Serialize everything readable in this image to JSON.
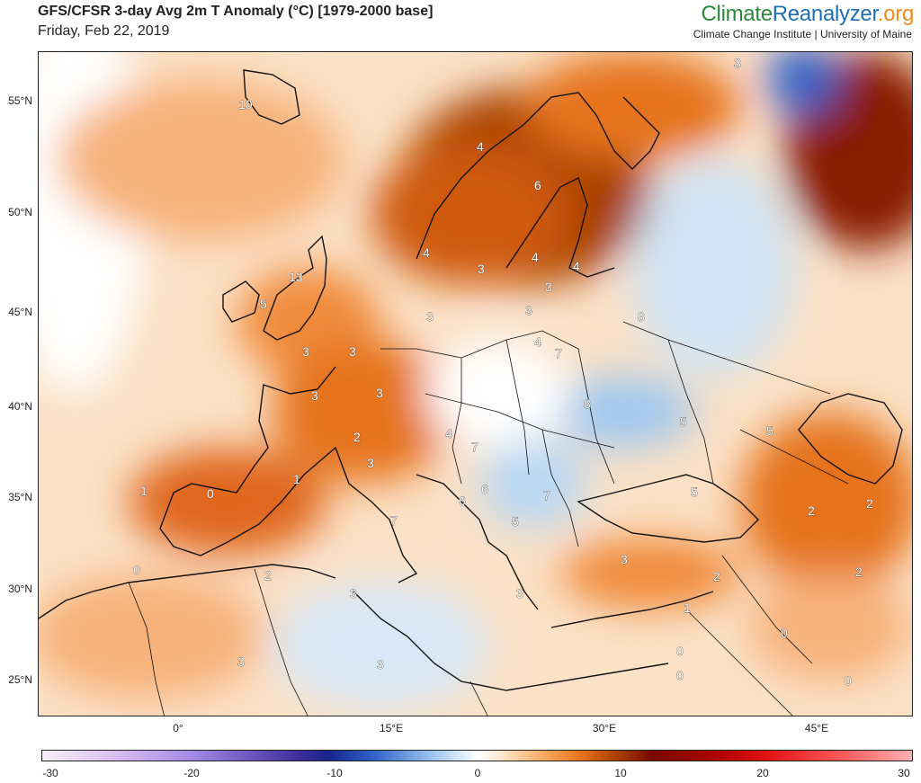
{
  "header": {
    "title": "GFS/CFSR 3-day Avg 2m T Anomaly (°C) [1979-2000 base]",
    "date": "Friday, Feb 22, 2019",
    "brand_part1": "Climate",
    "brand_part2": "Reanalyzer",
    "brand_part3": ".org",
    "brand_subtitle": "Climate Change Institute | University of Maine"
  },
  "colors": {
    "brand_green": "#2a8a3a",
    "brand_blue": "#1c6fb6",
    "brand_orange": "#f08a1c",
    "warm": "#e6731a",
    "cold": "#9fc8f0"
  },
  "axes": {
    "lat_labels": [
      "55°N",
      "50°N",
      "45°N",
      "40°N",
      "35°N",
      "30°N",
      "25°N"
    ],
    "lon_labels": [
      "0°",
      "15°E",
      "30°E",
      "45°E"
    ]
  },
  "colorbar": {
    "ticks": [
      "-30",
      "-20",
      "-10",
      "0",
      "10",
      "20",
      "30"
    ]
  },
  "anomaly_labels": [
    "10",
    "4",
    "6",
    "4",
    "3",
    "4",
    "4",
    "13",
    "5",
    "3",
    "3",
    "3",
    "3",
    "4",
    "7",
    "8",
    "3",
    "3",
    "3",
    "8",
    "5",
    "5",
    "2",
    "4",
    "7",
    "3",
    "1",
    "0",
    "1",
    "6",
    "6",
    "7",
    "5",
    "7",
    "5",
    "2",
    "2",
    "0",
    "2",
    "3",
    "3",
    "3",
    "2",
    "1",
    "0",
    "0",
    "0",
    "2",
    "0",
    "3",
    "3",
    "3",
    "0"
  ]
}
